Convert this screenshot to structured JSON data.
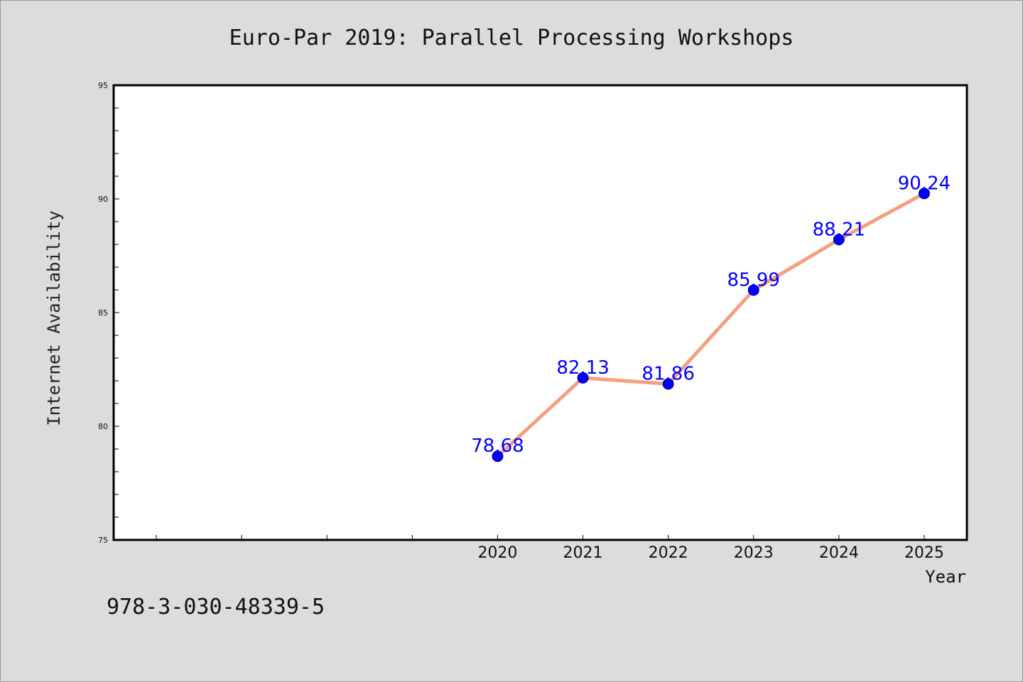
{
  "chart_data": {
    "type": "line",
    "title": "Euro-Par 2019: Parallel Processing Workshops",
    "xlabel": "Year",
    "ylabel": "Internet Availability",
    "x": [
      2020,
      2021,
      2022,
      2023,
      2024,
      2025
    ],
    "x_tick_labels": [
      "2020",
      "2021",
      "2022",
      "2023",
      "2024",
      "2025"
    ],
    "xlim": [
      2015.5,
      2025.5
    ],
    "ylim": [
      75,
      95
    ],
    "y_ticks": [
      75,
      80,
      85,
      90,
      95
    ],
    "series": [
      {
        "values": [
          78.68,
          82.13,
          81.86,
          85.99,
          88.21,
          90.24
        ],
        "labels": [
          "78.68",
          "82.13",
          "81.86",
          "85.99",
          "88.21",
          "90.24"
        ],
        "line_color": "#f4a07f",
        "marker_color": "#0000ff"
      }
    ],
    "grid": false,
    "legend": "none"
  },
  "footer": {
    "isbn": "978-3-030-48339-5"
  }
}
